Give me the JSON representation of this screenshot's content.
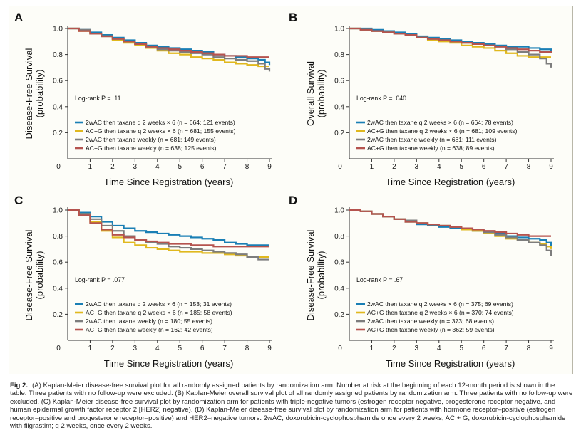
{
  "caption": {
    "label": "Fig 2.",
    "text": "(A) Kaplan-Meier disease-free survival plot for all randomly assigned patients by randomization arm. Number at risk at the beginning of each 12-month period is shown in the table. Three patients with no follow-up were excluded. (B) Kaplan-Meier overall survival plot of all randomly assigned patients by randomization arm. Three patients with no follow-up were excluded. (C) Kaplan-Meier disease-free survival plot by randomization arm for patients with triple-negative tumors (estrogen receptor negative, progesterone receptor negative, and human epidermal growth factor receptor 2 [HER2] negative). (D) Kaplan-Meier disease-free survival plot by randomization arm for patients with hormone receptor–positive (estrogen receptor–positive and progesterone receptor–positive) and HER2–negative tumors. 2wAC, doxorubicin-cyclophosphamide once every 2 weeks; AC + G, doxorubicin-cyclophosphamide with filgrastim; q 2 weeks, once every 2 weeks."
  },
  "colors": {
    "2wAC_q2w": "#1a7fb5",
    "ACG_q2w": "#e0b81e",
    "2wAC_weekly": "#7d7d7d",
    "ACG_weekly": "#b5534e"
  },
  "chart_data": [
    {
      "panel": "A",
      "type": "line",
      "xlabel": "Time Since Registration (years)",
      "ylabel": "Disease-Free Survival",
      "ylabel2": "(probability)",
      "xlim": [
        0,
        9
      ],
      "ylim": [
        0,
        1
      ],
      "xticks": [
        "0",
        "1",
        "2",
        "3",
        "4",
        "5",
        "6",
        "7",
        "8",
        "9"
      ],
      "yticks": [
        "0.2",
        "0.4",
        "0.6",
        "0.8",
        "1.0"
      ],
      "logrank": "Log-rank P = .11",
      "series": [
        {
          "name": "2wAC then taxane q 2 weeks × 6 (n = 664; 121 events)",
          "color_key": "2wAC_q2w",
          "x": [
            0,
            0.5,
            1,
            1.5,
            2,
            2.5,
            3,
            3.5,
            4,
            4.5,
            5,
            5.5,
            6,
            6.5,
            7,
            7.5,
            8,
            8.5,
            8.8,
            9
          ],
          "y": [
            1,
            0.99,
            0.97,
            0.95,
            0.93,
            0.91,
            0.89,
            0.87,
            0.86,
            0.85,
            0.84,
            0.83,
            0.82,
            0.8,
            0.79,
            0.78,
            0.77,
            0.76,
            0.74,
            0.72
          ]
        },
        {
          "name": "AC+G then taxane q 2 weeks × 6 (n = 681; 155 events)",
          "color_key": "ACG_q2w",
          "x": [
            0,
            0.5,
            1,
            1.5,
            2,
            2.5,
            3,
            3.5,
            4,
            4.5,
            5,
            5.5,
            6,
            6.5,
            7,
            7.5,
            8,
            8.5,
            9
          ],
          "y": [
            1,
            0.98,
            0.96,
            0.94,
            0.91,
            0.89,
            0.87,
            0.85,
            0.83,
            0.81,
            0.8,
            0.78,
            0.77,
            0.76,
            0.74,
            0.73,
            0.72,
            0.71,
            0.71
          ]
        },
        {
          "name": "2wAC then taxane weekly (n = 681; 149 events)",
          "color_key": "2wAC_weekly",
          "x": [
            0,
            0.5,
            1,
            1.5,
            2,
            2.5,
            3,
            3.5,
            4,
            4.5,
            5,
            5.5,
            6,
            6.5,
            7,
            7.5,
            8,
            8.5,
            8.8,
            9
          ],
          "y": [
            1,
            0.99,
            0.96,
            0.94,
            0.92,
            0.9,
            0.88,
            0.86,
            0.84,
            0.83,
            0.82,
            0.81,
            0.8,
            0.78,
            0.77,
            0.76,
            0.75,
            0.73,
            0.69,
            0.67
          ]
        },
        {
          "name": "AC+G then taxane weekly (n = 638; 125 events)",
          "color_key": "ACG_weekly",
          "x": [
            0,
            0.5,
            1,
            1.5,
            2,
            2.5,
            3,
            3.5,
            4,
            4.5,
            5,
            5.5,
            6,
            6.5,
            7,
            7.5,
            8,
            8.5,
            9
          ],
          "y": [
            1,
            0.98,
            0.96,
            0.94,
            0.92,
            0.9,
            0.88,
            0.86,
            0.85,
            0.84,
            0.83,
            0.82,
            0.81,
            0.8,
            0.79,
            0.79,
            0.78,
            0.78,
            0.78
          ]
        }
      ]
    },
    {
      "panel": "B",
      "type": "line",
      "xlabel": "Time Since Registration (years)",
      "ylabel": "Overall Survival",
      "ylabel2": "(probability)",
      "xlim": [
        0,
        9
      ],
      "ylim": [
        0,
        1
      ],
      "xticks": [
        "0",
        "1",
        "2",
        "3",
        "4",
        "5",
        "6",
        "7",
        "8",
        "9"
      ],
      "yticks": [
        "0.2",
        "0.4",
        "0.6",
        "0.8",
        "1.0"
      ],
      "logrank": "Log-rank P = .040",
      "series": [
        {
          "name": "2wAC then taxane q 2 weeks × 6 (n = 664; 78 events)",
          "color_key": "2wAC_q2w",
          "x": [
            0,
            0.5,
            1,
            1.5,
            2,
            2.5,
            3,
            3.5,
            4,
            4.5,
            5,
            5.5,
            6,
            6.5,
            7,
            7.5,
            8,
            8.5,
            9
          ],
          "y": [
            1,
            1,
            0.99,
            0.98,
            0.97,
            0.96,
            0.94,
            0.93,
            0.92,
            0.91,
            0.9,
            0.89,
            0.88,
            0.87,
            0.86,
            0.86,
            0.85,
            0.84,
            0.83
          ]
        },
        {
          "name": "AC+G then taxane q 2 weeks × 6 (n = 681; 109 events)",
          "color_key": "ACG_q2w",
          "x": [
            0,
            0.5,
            1,
            1.5,
            2,
            2.5,
            3,
            3.5,
            4,
            4.5,
            5,
            5.5,
            6,
            6.5,
            7,
            7.5,
            8,
            8.5,
            9
          ],
          "y": [
            1,
            0.99,
            0.98,
            0.97,
            0.96,
            0.95,
            0.93,
            0.91,
            0.9,
            0.89,
            0.87,
            0.86,
            0.85,
            0.83,
            0.81,
            0.79,
            0.78,
            0.78,
            0.78
          ]
        },
        {
          "name": "2wAC then taxane weekly (n = 681; 111 events)",
          "color_key": "2wAC_weekly",
          "x": [
            0,
            0.5,
            1,
            1.5,
            2,
            2.5,
            3,
            3.5,
            4,
            4.5,
            5,
            5.5,
            6,
            6.5,
            7,
            7.5,
            8,
            8.5,
            8.8,
            9
          ],
          "y": [
            1,
            0.99,
            0.98,
            0.97,
            0.96,
            0.95,
            0.93,
            0.92,
            0.91,
            0.9,
            0.89,
            0.88,
            0.87,
            0.86,
            0.84,
            0.82,
            0.8,
            0.77,
            0.73,
            0.7
          ]
        },
        {
          "name": "AC+G then taxane weekly (n = 638; 89 events)",
          "color_key": "ACG_weekly",
          "x": [
            0,
            0.5,
            1,
            1.5,
            2,
            2.5,
            3,
            3.5,
            4,
            4.5,
            5,
            5.5,
            6,
            6.5,
            7,
            7.5,
            8,
            8.5,
            9
          ],
          "y": [
            1,
            0.99,
            0.98,
            0.97,
            0.96,
            0.95,
            0.93,
            0.92,
            0.91,
            0.9,
            0.89,
            0.88,
            0.87,
            0.86,
            0.85,
            0.84,
            0.83,
            0.82,
            0.81
          ]
        }
      ]
    },
    {
      "panel": "C",
      "type": "line",
      "xlabel": "Time Since Registration (years)",
      "ylabel": "Disease-Free Survival",
      "ylabel2": "(probability)",
      "xlim": [
        0,
        9
      ],
      "ylim": [
        0,
        1
      ],
      "xticks": [
        "0",
        "1",
        "2",
        "3",
        "4",
        "5",
        "6",
        "7",
        "8",
        "9"
      ],
      "yticks": [
        "0.2",
        "0.4",
        "0.6",
        "0.8",
        "1.0"
      ],
      "logrank": "Log-rank P = .077",
      "series": [
        {
          "name": "2wAC then taxane q 2 weeks × 6 (n = 153; 31 events)",
          "color_key": "2wAC_q2w",
          "x": [
            0,
            0.5,
            1,
            1.5,
            2,
            2.5,
            3,
            3.5,
            4,
            4.5,
            5,
            5.5,
            6,
            6.5,
            7,
            7.5,
            8,
            8.5,
            9
          ],
          "y": [
            1,
            0.98,
            0.95,
            0.91,
            0.88,
            0.86,
            0.84,
            0.83,
            0.82,
            0.81,
            0.8,
            0.79,
            0.78,
            0.77,
            0.75,
            0.74,
            0.73,
            0.73,
            0.73
          ]
        },
        {
          "name": "AC+G then taxane q 2 weeks × 6 (n = 185; 58 events)",
          "color_key": "ACG_q2w",
          "x": [
            0,
            0.5,
            1,
            1.5,
            2,
            2.5,
            3,
            3.5,
            4,
            4.5,
            5,
            5.5,
            6,
            6.5,
            7,
            7.5,
            8,
            8.5,
            9
          ],
          "y": [
            1,
            0.97,
            0.91,
            0.84,
            0.79,
            0.75,
            0.73,
            0.71,
            0.7,
            0.69,
            0.68,
            0.68,
            0.67,
            0.67,
            0.66,
            0.65,
            0.64,
            0.64,
            0.64
          ]
        },
        {
          "name": "2wAC then taxane weekly (n = 180; 55 events)",
          "color_key": "2wAC_weekly",
          "x": [
            0,
            0.5,
            1,
            1.5,
            2,
            2.5,
            3,
            3.5,
            4,
            4.5,
            5,
            5.5,
            6,
            6.5,
            7,
            7.5,
            8,
            8.5,
            9
          ],
          "y": [
            1,
            0.97,
            0.93,
            0.88,
            0.84,
            0.8,
            0.77,
            0.75,
            0.74,
            0.72,
            0.71,
            0.7,
            0.69,
            0.68,
            0.67,
            0.66,
            0.64,
            0.62,
            0.62
          ]
        },
        {
          "name": "AC+G then taxane weekly (n = 162; 42 events)",
          "color_key": "ACG_weekly",
          "x": [
            0,
            0.5,
            1,
            1.5,
            2,
            2.5,
            3,
            3.5,
            4,
            4.5,
            5,
            5.5,
            6,
            6.5,
            7,
            7.5,
            8,
            8.5,
            9
          ],
          "y": [
            1,
            0.96,
            0.9,
            0.85,
            0.81,
            0.79,
            0.77,
            0.76,
            0.75,
            0.74,
            0.74,
            0.73,
            0.73,
            0.72,
            0.72,
            0.72,
            0.72,
            0.72,
            0.72
          ]
        }
      ]
    },
    {
      "panel": "D",
      "type": "line",
      "xlabel": "Time Since Registration (years)",
      "ylabel": "Disease-Free Survival",
      "ylabel2": "(probability)",
      "xlim": [
        0,
        9
      ],
      "ylim": [
        0,
        1
      ],
      "xticks": [
        "0",
        "1",
        "2",
        "3",
        "4",
        "5",
        "6",
        "7",
        "8",
        "9"
      ],
      "yticks": [
        "0.2",
        "0.4",
        "0.6",
        "0.8",
        "1.0"
      ],
      "logrank": "Log-rank P = .67",
      "series": [
        {
          "name": "2wAC then taxane q 2 weeks × 6 (n = 375; 69 events)",
          "color_key": "2wAC_q2w",
          "x": [
            0,
            0.5,
            1,
            1.5,
            2,
            2.5,
            3,
            3.5,
            4,
            4.5,
            5,
            5.5,
            6,
            6.5,
            7,
            7.5,
            8,
            8.5,
            8.8,
            9
          ],
          "y": [
            1,
            0.99,
            0.97,
            0.95,
            0.93,
            0.91,
            0.89,
            0.88,
            0.87,
            0.86,
            0.85,
            0.84,
            0.83,
            0.82,
            0.8,
            0.79,
            0.78,
            0.77,
            0.75,
            0.72
          ]
        },
        {
          "name": "AC+G then taxane q 2 weeks × 6 (n = 370; 74 events)",
          "color_key": "ACG_q2w",
          "x": [
            0,
            0.5,
            1,
            1.5,
            2,
            2.5,
            3,
            3.5,
            4,
            4.5,
            5,
            5.5,
            6,
            6.5,
            7,
            7.5,
            8,
            8.5,
            8.8,
            9
          ],
          "y": [
            1,
            0.99,
            0.97,
            0.95,
            0.93,
            0.91,
            0.9,
            0.89,
            0.88,
            0.87,
            0.85,
            0.84,
            0.82,
            0.8,
            0.78,
            0.77,
            0.75,
            0.74,
            0.72,
            0.7
          ]
        },
        {
          "name": "2wAC then taxane weekly (n = 373; 68 events)",
          "color_key": "2wAC_weekly",
          "x": [
            0,
            0.5,
            1,
            1.5,
            2,
            2.5,
            3,
            3.5,
            4,
            4.5,
            5,
            5.5,
            6,
            6.5,
            7,
            7.5,
            8,
            8.5,
            8.8,
            9
          ],
          "y": [
            1,
            0.99,
            0.97,
            0.95,
            0.93,
            0.92,
            0.9,
            0.89,
            0.88,
            0.87,
            0.86,
            0.85,
            0.83,
            0.81,
            0.79,
            0.77,
            0.75,
            0.73,
            0.69,
            0.65
          ]
        },
        {
          "name": "AC+G then taxane weekly (n = 362; 59 events)",
          "color_key": "ACG_weekly",
          "x": [
            0,
            0.5,
            1,
            1.5,
            2,
            2.5,
            3,
            3.5,
            4,
            4.5,
            5,
            5.5,
            6,
            6.5,
            7,
            7.5,
            8,
            8.5,
            9
          ],
          "y": [
            1,
            0.99,
            0.97,
            0.95,
            0.93,
            0.91,
            0.9,
            0.89,
            0.88,
            0.87,
            0.86,
            0.85,
            0.84,
            0.83,
            0.82,
            0.81,
            0.8,
            0.8,
            0.8
          ]
        }
      ]
    }
  ]
}
